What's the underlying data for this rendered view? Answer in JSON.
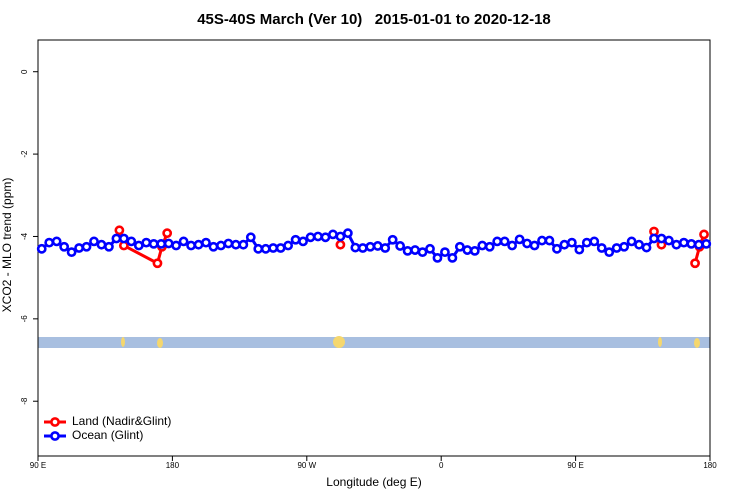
{
  "chart_data": {
    "type": "line",
    "title": "45S-40S March (Ver 10)   2015-01-01 to 2020-12-18",
    "x_label": "Longitude (deg E)",
    "y_label": "XCO2 - MLO trend (ppm)",
    "xlim": [
      90,
      540
    ],
    "ylim": [
      -9.33,
      0.77
    ],
    "xticks": [
      {
        "value": 90,
        "label": "90 E"
      },
      180,
      {
        "value": 270,
        "label": "90 W"
      },
      {
        "value": 360,
        "label": "0"
      },
      {
        "value": 450,
        "label": "90 E"
      },
      {
        "value": 540,
        "label": "180"
      }
    ],
    "yticks": [
      0,
      -2,
      -4,
      -6,
      -8
    ],
    "legend": "bottom-left",
    "series": [
      {
        "name": "Land (Nadir&Glint)",
        "color": "#ff0000",
        "x": [
          144.5,
          147.5,
          170,
          173,
          176.5,
          null,
          292.5,
          null,
          502.5,
          507.5,
          null,
          530,
          533,
          536
        ],
        "values": [
          -3.85,
          -4.22,
          -4.65,
          -4.25,
          -3.92,
          null,
          -4.2,
          null,
          -3.88,
          -4.2,
          null,
          -4.65,
          -4.25,
          -3.95
        ]
      },
      {
        "name": "Ocean (Glint)",
        "color": "#0000ff",
        "x": [
          92.5,
          97.5,
          102.5,
          107.5,
          112.5,
          117.5,
          122.5,
          127.5,
          132.5,
          137.5,
          142.5,
          147.5,
          152.5,
          157.5,
          162.5,
          167.5,
          172.5,
          177.5,
          182.5,
          187.5,
          192.5,
          197.5,
          202.5,
          207.5,
          212.5,
          217.5,
          222.5,
          227.5,
          232.5,
          237.5,
          242.5,
          247.5,
          252.5,
          257.5,
          262.5,
          267.5,
          272.5,
          277.5,
          282.5,
          287.5,
          292.5,
          297.5,
          302.5,
          307.5,
          312.5,
          317.5,
          322.5,
          327.5,
          332.5,
          337.5,
          342.5,
          347.5,
          352.5,
          357.5,
          362.5,
          367.5,
          372.5,
          377.5,
          382.5,
          387.5,
          392.5,
          397.5,
          402.5,
          407.5,
          412.5,
          417.5,
          422.5,
          427.5,
          432.5,
          437.5,
          442.5,
          447.5,
          452.5,
          457.5,
          462.5,
          467.5,
          472.5,
          477.5,
          482.5,
          487.5,
          492.5,
          497.5,
          502.5,
          507.5,
          512.5,
          517.5,
          522.5,
          527.5,
          532.5,
          537.5
        ],
        "values": [
          -4.3,
          -4.15,
          -4.12,
          -4.25,
          -4.38,
          -4.28,
          -4.25,
          -4.12,
          -4.2,
          -4.25,
          -4.05,
          -4.05,
          -4.12,
          -4.22,
          -4.15,
          -4.18,
          -4.18,
          -4.17,
          -4.22,
          -4.12,
          -4.22,
          -4.2,
          -4.15,
          -4.25,
          -4.22,
          -4.17,
          -4.2,
          -4.2,
          -4.02,
          -4.3,
          -4.3,
          -4.28,
          -4.28,
          -4.22,
          -4.08,
          -4.12,
          -4.02,
          -4.0,
          -4.02,
          -3.95,
          -4.0,
          -3.92,
          -4.27,
          -4.28,
          -4.25,
          -4.23,
          -4.28,
          -4.08,
          -4.23,
          -4.35,
          -4.33,
          -4.38,
          -4.3,
          -4.52,
          -4.38,
          -4.52,
          -4.25,
          -4.33,
          -4.35,
          -4.22,
          -4.25,
          -4.12,
          -4.12,
          -4.22,
          -4.07,
          -4.17,
          -4.22,
          -4.1,
          -4.1,
          -4.3,
          -4.2,
          -4.15,
          -4.32,
          -4.15,
          -4.12,
          -4.28,
          -4.38,
          -4.28,
          -4.25,
          -4.12,
          -4.2,
          -4.27,
          -4.05,
          -4.05,
          -4.1,
          -4.2,
          -4.15,
          -4.18,
          -4.2,
          -4.18
        ]
      }
    ]
  }
}
